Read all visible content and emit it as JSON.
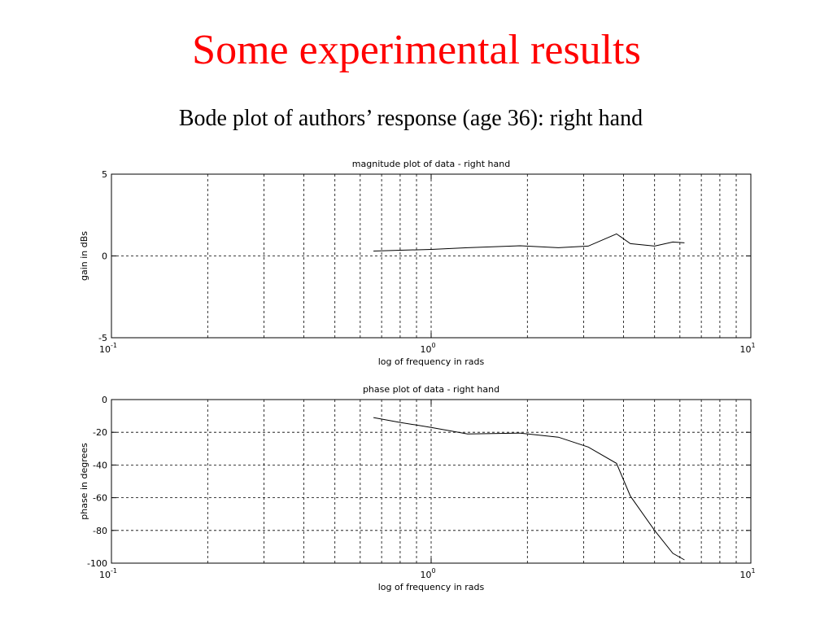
{
  "slide": {
    "title": "Some experimental results",
    "subtitle": "Bode plot of authors’ response (age 36): right hand"
  },
  "chart_data": [
    {
      "type": "line",
      "title": "magnitude plot of data - right hand",
      "xlabel": "log of frequency in rads",
      "ylabel": "gain in dBs",
      "xscale": "log",
      "xlim": [
        0.1,
        10
      ],
      "ylim": [
        -5,
        5
      ],
      "yticks": [
        -5,
        0,
        5
      ],
      "xticks": [
        {
          "base": "10",
          "exp": "-1"
        },
        {
          "base": "10",
          "exp": "0"
        },
        {
          "base": "10",
          "exp": "1"
        }
      ],
      "grid": true,
      "series": [
        {
          "x": [
            0.66,
            0.8,
            1.0,
            1.3,
            1.9,
            2.5,
            3.1,
            3.8,
            4.2,
            5.0,
            5.7,
            6.2
          ],
          "y": [
            0.3,
            0.35,
            0.4,
            0.5,
            0.62,
            0.5,
            0.6,
            1.35,
            0.75,
            0.6,
            0.85,
            0.8
          ]
        }
      ]
    },
    {
      "type": "line",
      "title": "phase plot of data - right hand",
      "xlabel": "log of frequency in rads",
      "ylabel": "phase in degrees",
      "xscale": "log",
      "xlim": [
        0.1,
        10
      ],
      "ylim": [
        -100,
        0
      ],
      "yticks": [
        -100,
        -80,
        -60,
        -40,
        -20,
        0
      ],
      "xticks": [
        {
          "base": "10",
          "exp": "-1"
        },
        {
          "base": "10",
          "exp": "0"
        },
        {
          "base": "10",
          "exp": "1"
        }
      ],
      "grid": true,
      "series": [
        {
          "x": [
            0.66,
            0.8,
            1.0,
            1.3,
            1.9,
            2.5,
            3.1,
            3.8,
            4.2,
            5.0,
            5.7,
            6.2
          ],
          "y": [
            -11,
            -14,
            -17,
            -21,
            -20.5,
            -23,
            -29,
            -39,
            -59,
            -80,
            -94,
            -98
          ]
        }
      ]
    }
  ]
}
